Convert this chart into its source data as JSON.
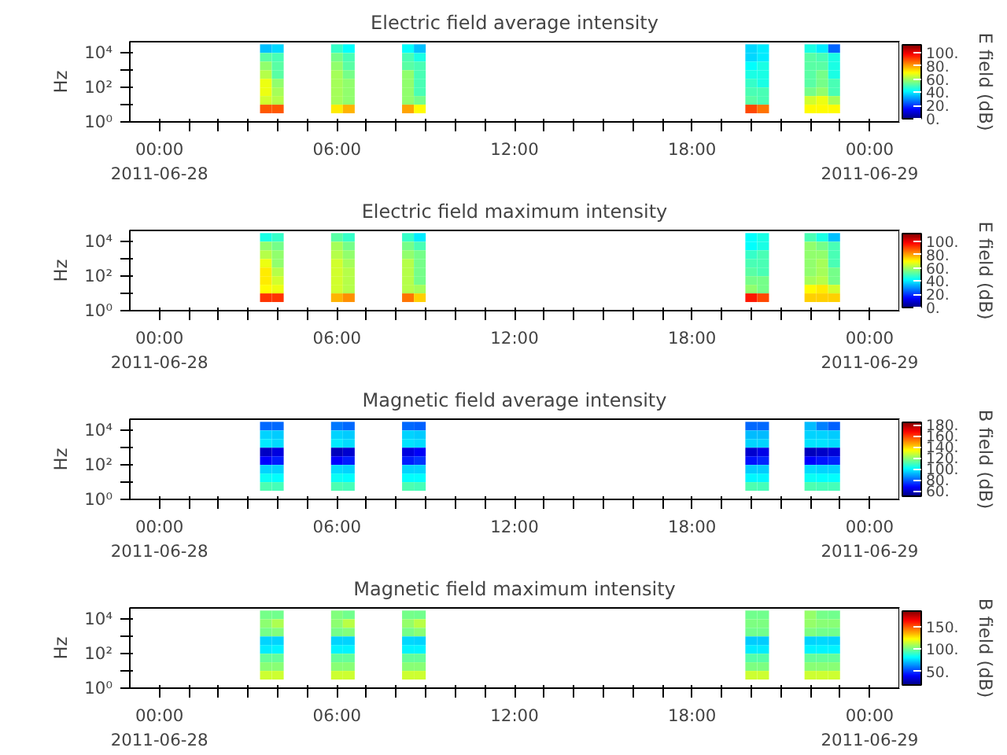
{
  "chart_data": [
    {
      "type": "heatmap",
      "title": "Electric field average intensity",
      "ylabel": "Hz",
      "clabel": "E field (dB)",
      "log": "y",
      "xlim": [
        -1,
        25
      ],
      "ylim": [
        1,
        45000
      ],
      "xticks": [
        {
          "value": 0,
          "label": "00:00\n2011-06-28"
        },
        {
          "value": 1,
          "label": null
        },
        {
          "value": 2,
          "label": null
        },
        {
          "value": 3,
          "label": null
        },
        {
          "value": 4,
          "label": null
        },
        {
          "value": 5,
          "label": null
        },
        {
          "value": 6,
          "label": "06:00"
        },
        {
          "value": 7,
          "label": null
        },
        {
          "value": 8,
          "label": null
        },
        {
          "value": 9,
          "label": null
        },
        {
          "value": 10,
          "label": null
        },
        {
          "value": 11,
          "label": null
        },
        {
          "value": 12,
          "label": "12:00"
        },
        {
          "value": 13,
          "label": null
        },
        {
          "value": 14,
          "label": null
        },
        {
          "value": 15,
          "label": null
        },
        {
          "value": 16,
          "label": null
        },
        {
          "value": 17,
          "label": null
        },
        {
          "value": 18,
          "label": "18:00"
        },
        {
          "value": 19,
          "label": null
        },
        {
          "value": 20,
          "label": null
        },
        {
          "value": 21,
          "label": null
        },
        {
          "value": 22,
          "label": null
        },
        {
          "value": 23,
          "label": null
        },
        {
          "value": 24,
          "label": "00:00\n2011-06-29"
        }
      ],
      "yticks": [
        {
          "value": 1,
          "label": "10⁰"
        },
        {
          "value": 10,
          "label": null
        },
        {
          "value": 100,
          "label": "10²"
        },
        {
          "value": 1000,
          "label": null
        },
        {
          "value": 10000,
          "label": "10⁴"
        }
      ],
      "clim": [
        0,
        112
      ],
      "cticks": [
        {
          "value": 0,
          "label": "0."
        },
        {
          "value": 20,
          "label": "20."
        },
        {
          "value": 40,
          "label": "40."
        },
        {
          "value": 60,
          "label": "60."
        },
        {
          "value": 80,
          "label": "80."
        },
        {
          "value": 100,
          "label": "100."
        }
      ],
      "x": [
        3.6,
        4.0,
        4.4,
        4.8,
        5.2,
        5.6,
        6.0,
        6.4,
        6.8,
        7.2,
        7.6,
        8.0,
        8.4,
        8.8,
        9.2,
        9.6,
        10.0,
        10.4,
        10.8,
        11.2,
        11.6,
        12.0,
        12.4,
        12.8,
        13.2,
        13.6,
        14.0,
        14.4,
        14.8,
        15.2,
        15.6,
        16.0,
        16.4,
        16.8,
        17.2,
        17.6,
        18.0,
        18.4,
        18.8,
        19.2,
        19.6,
        20.0,
        20.4,
        20.8,
        21.2,
        21.6,
        22.0,
        22.4,
        22.8
      ],
      "y": [
        17800,
        5620,
        1780,
        562,
        178,
        56.2,
        17.8,
        5.62
      ],
      "cells": [
        [
          35,
          38,
          null,
          null,
          null,
          null,
          48,
          42,
          null,
          null,
          null,
          null,
          42,
          35,
          null,
          null,
          null,
          null,
          null,
          null,
          null,
          null,
          null,
          null,
          null,
          null,
          null,
          null,
          null,
          null,
          null,
          null,
          null,
          null,
          null,
          null,
          null,
          null,
          null,
          null,
          null,
          38,
          40,
          null,
          null,
          null,
          45,
          40,
          25
        ],
        [
          52,
          50,
          null,
          null,
          null,
          null,
          55,
          50,
          null,
          null,
          null,
          null,
          50,
          45,
          null,
          null,
          null,
          null,
          null,
          null,
          null,
          null,
          null,
          null,
          null,
          null,
          null,
          null,
          null,
          null,
          null,
          null,
          null,
          null,
          null,
          null,
          null,
          null,
          null,
          null,
          null,
          38,
          40,
          null,
          null,
          null,
          52,
          50,
          45
        ],
        [
          58,
          52,
          null,
          null,
          null,
          null,
          58,
          52,
          null,
          null,
          null,
          null,
          52,
          50,
          null,
          null,
          null,
          null,
          null,
          null,
          null,
          null,
          null,
          null,
          null,
          null,
          null,
          null,
          null,
          null,
          null,
          null,
          null,
          null,
          null,
          null,
          null,
          null,
          null,
          null,
          null,
          42,
          45,
          null,
          null,
          null,
          52,
          52,
          45
        ],
        [
          62,
          52,
          null,
          null,
          null,
          null,
          60,
          55,
          null,
          null,
          null,
          null,
          58,
          50,
          null,
          null,
          null,
          null,
          null,
          null,
          null,
          null,
          null,
          null,
          null,
          null,
          null,
          null,
          null,
          null,
          null,
          null,
          null,
          null,
          null,
          null,
          null,
          null,
          null,
          null,
          null,
          45,
          45,
          null,
          null,
          null,
          52,
          55,
          45
        ],
        [
          68,
          58,
          null,
          null,
          null,
          null,
          60,
          58,
          null,
          null,
          null,
          null,
          58,
          50,
          null,
          null,
          null,
          null,
          null,
          null,
          null,
          null,
          null,
          null,
          null,
          null,
          null,
          null,
          null,
          null,
          null,
          null,
          null,
          null,
          null,
          null,
          null,
          null,
          null,
          null,
          null,
          48,
          45,
          null,
          null,
          null,
          52,
          55,
          50
        ],
        [
          68,
          60,
          null,
          null,
          null,
          null,
          60,
          58,
          null,
          null,
          null,
          null,
          58,
          50,
          null,
          null,
          null,
          null,
          null,
          null,
          null,
          null,
          null,
          null,
          null,
          null,
          null,
          null,
          null,
          null,
          null,
          null,
          null,
          null,
          null,
          null,
          null,
          null,
          null,
          null,
          null,
          50,
          50,
          null,
          null,
          null,
          55,
          58,
          50
        ],
        [
          65,
          62,
          null,
          null,
          null,
          null,
          60,
          58,
          null,
          null,
          null,
          null,
          58,
          55,
          null,
          null,
          null,
          null,
          null,
          null,
          null,
          null,
          null,
          null,
          null,
          null,
          null,
          null,
          null,
          null,
          null,
          null,
          null,
          null,
          null,
          null,
          null,
          null,
          null,
          null,
          null,
          52,
          50,
          null,
          null,
          null,
          65,
          68,
          60
        ],
        [
          88,
          88,
          null,
          null,
          null,
          null,
          72,
          78,
          null,
          null,
          null,
          null,
          80,
          70,
          null,
          null,
          null,
          null,
          null,
          null,
          null,
          null,
          null,
          null,
          null,
          null,
          null,
          null,
          null,
          null,
          null,
          null,
          null,
          null,
          null,
          null,
          null,
          null,
          null,
          null,
          null,
          90,
          85,
          null,
          null,
          null,
          70,
          70,
          70
        ]
      ]
    },
    {
      "type": "heatmap",
      "title": "Electric field maximum intensity",
      "ylabel": "Hz",
      "clabel": "E field (dB)",
      "log": "y",
      "xlim": [
        -1,
        25
      ],
      "ylim": [
        1,
        45000
      ],
      "xticks": [
        {
          "value": 0,
          "label": "00:00\n2011-06-28"
        },
        {
          "value": 1,
          "label": null
        },
        {
          "value": 2,
          "label": null
        },
        {
          "value": 3,
          "label": null
        },
        {
          "value": 4,
          "label": null
        },
        {
          "value": 5,
          "label": null
        },
        {
          "value": 6,
          "label": "06:00"
        },
        {
          "value": 7,
          "label": null
        },
        {
          "value": 8,
          "label": null
        },
        {
          "value": 9,
          "label": null
        },
        {
          "value": 10,
          "label": null
        },
        {
          "value": 11,
          "label": null
        },
        {
          "value": 12,
          "label": "12:00"
        },
        {
          "value": 13,
          "label": null
        },
        {
          "value": 14,
          "label": null
        },
        {
          "value": 15,
          "label": null
        },
        {
          "value": 16,
          "label": null
        },
        {
          "value": 17,
          "label": null
        },
        {
          "value": 18,
          "label": "18:00"
        },
        {
          "value": 19,
          "label": null
        },
        {
          "value": 20,
          "label": null
        },
        {
          "value": 21,
          "label": null
        },
        {
          "value": 22,
          "label": null
        },
        {
          "value": 23,
          "label": null
        },
        {
          "value": 24,
          "label": "00:00\n2011-06-29"
        }
      ],
      "yticks": [
        {
          "value": 1,
          "label": "10⁰"
        },
        {
          "value": 10,
          "label": null
        },
        {
          "value": 100,
          "label": "10²"
        },
        {
          "value": 1000,
          "label": null
        },
        {
          "value": 10000,
          "label": "10⁴"
        }
      ],
      "clim": [
        0,
        112
      ],
      "cticks": [
        {
          "value": 0,
          "label": "0."
        },
        {
          "value": 20,
          "label": "20."
        },
        {
          "value": 40,
          "label": "40."
        },
        {
          "value": 60,
          "label": "60."
        },
        {
          "value": 80,
          "label": "80."
        },
        {
          "value": 100,
          "label": "100."
        }
      ],
      "x": [
        3.6,
        4.0,
        4.4,
        4.8,
        5.2,
        5.6,
        6.0,
        6.4,
        6.8,
        7.2,
        7.6,
        8.0,
        8.4,
        8.8,
        9.2,
        9.6,
        10.0,
        10.4,
        10.8,
        11.2,
        11.6,
        12.0,
        12.4,
        12.8,
        13.2,
        13.6,
        14.0,
        14.4,
        14.8,
        15.2,
        15.6,
        16.0,
        16.4,
        16.8,
        17.2,
        17.6,
        18.0,
        18.4,
        18.8,
        19.2,
        19.6,
        20.0,
        20.4,
        20.8,
        21.2,
        21.6,
        22.0,
        22.4,
        22.8
      ],
      "y": [
        17800,
        5620,
        1780,
        562,
        178,
        56.2,
        17.8,
        5.62
      ],
      "cells": [
        [
          45,
          48,
          null,
          null,
          null,
          null,
          52,
          48,
          null,
          null,
          null,
          null,
          48,
          40,
          null,
          null,
          null,
          null,
          null,
          null,
          null,
          null,
          null,
          null,
          null,
          null,
          null,
          null,
          null,
          null,
          null,
          null,
          null,
          null,
          null,
          null,
          null,
          null,
          null,
          null,
          null,
          42,
          45,
          null,
          null,
          null,
          50,
          45,
          35
        ],
        [
          58,
          55,
          null,
          null,
          null,
          null,
          60,
          55,
          null,
          null,
          null,
          null,
          55,
          50,
          null,
          null,
          null,
          null,
          null,
          null,
          null,
          null,
          null,
          null,
          null,
          null,
          null,
          null,
          null,
          null,
          null,
          null,
          null,
          null,
          null,
          null,
          null,
          null,
          null,
          null,
          null,
          42,
          45,
          null,
          null,
          null,
          58,
          55,
          50
        ],
        [
          62,
          58,
          null,
          null,
          null,
          null,
          62,
          58,
          null,
          null,
          null,
          null,
          58,
          55,
          null,
          null,
          null,
          null,
          null,
          null,
          null,
          null,
          null,
          null,
          null,
          null,
          null,
          null,
          null,
          null,
          null,
          null,
          null,
          null,
          null,
          null,
          null,
          null,
          null,
          null,
          null,
          48,
          50,
          null,
          null,
          null,
          58,
          58,
          50
        ],
        [
          68,
          58,
          null,
          null,
          null,
          null,
          65,
          60,
          null,
          null,
          null,
          null,
          62,
          55,
          null,
          null,
          null,
          null,
          null,
          null,
          null,
          null,
          null,
          null,
          null,
          null,
          null,
          null,
          null,
          null,
          null,
          null,
          null,
          null,
          null,
          null,
          null,
          null,
          null,
          null,
          null,
          50,
          50,
          null,
          null,
          null,
          58,
          60,
          50
        ],
        [
          72,
          62,
          null,
          null,
          null,
          null,
          65,
          62,
          null,
          null,
          null,
          null,
          62,
          55,
          null,
          null,
          null,
          null,
          null,
          null,
          null,
          null,
          null,
          null,
          null,
          null,
          null,
          null,
          null,
          null,
          null,
          null,
          null,
          null,
          null,
          null,
          null,
          null,
          null,
          null,
          null,
          52,
          50,
          null,
          null,
          null,
          58,
          60,
          55
        ],
        [
          72,
          65,
          null,
          null,
          null,
          null,
          65,
          62,
          null,
          null,
          null,
          null,
          62,
          55,
          null,
          null,
          null,
          null,
          null,
          null,
          null,
          null,
          null,
          null,
          null,
          null,
          null,
          null,
          null,
          null,
          null,
          null,
          null,
          null,
          null,
          null,
          null,
          null,
          null,
          null,
          null,
          55,
          55,
          null,
          null,
          null,
          60,
          62,
          55
        ],
        [
          70,
          68,
          null,
          null,
          null,
          null,
          65,
          62,
          null,
          null,
          null,
          null,
          62,
          60,
          null,
          null,
          null,
          null,
          null,
          null,
          null,
          null,
          null,
          null,
          null,
          null,
          null,
          null,
          null,
          null,
          null,
          null,
          null,
          null,
          null,
          null,
          null,
          null,
          null,
          null,
          null,
          58,
          55,
          null,
          null,
          null,
          70,
          72,
          65
        ],
        [
          92,
          92,
          null,
          null,
          null,
          null,
          78,
          82,
          null,
          null,
          null,
          null,
          85,
          75,
          null,
          null,
          null,
          null,
          null,
          null,
          null,
          null,
          null,
          null,
          null,
          null,
          null,
          null,
          null,
          null,
          null,
          null,
          null,
          null,
          null,
          null,
          null,
          null,
          null,
          null,
          null,
          95,
          90,
          null,
          null,
          null,
          75,
          75,
          75
        ]
      ]
    },
    {
      "type": "heatmap",
      "title": "Magnetic field average intensity",
      "ylabel": "Hz",
      "clabel": "B field (dB)",
      "log": "y",
      "xlim": [
        -1,
        25
      ],
      "ylim": [
        1,
        45000
      ],
      "xticks": [
        {
          "value": 0,
          "label": "00:00\n2011-06-28"
        },
        {
          "value": 1,
          "label": null
        },
        {
          "value": 2,
          "label": null
        },
        {
          "value": 3,
          "label": null
        },
        {
          "value": 4,
          "label": null
        },
        {
          "value": 5,
          "label": null
        },
        {
          "value": 6,
          "label": "06:00"
        },
        {
          "value": 7,
          "label": null
        },
        {
          "value": 8,
          "label": null
        },
        {
          "value": 9,
          "label": null
        },
        {
          "value": 10,
          "label": null
        },
        {
          "value": 11,
          "label": null
        },
        {
          "value": 12,
          "label": "12:00"
        },
        {
          "value": 13,
          "label": null
        },
        {
          "value": 14,
          "label": null
        },
        {
          "value": 15,
          "label": null
        },
        {
          "value": 16,
          "label": null
        },
        {
          "value": 17,
          "label": null
        },
        {
          "value": 18,
          "label": "18:00"
        },
        {
          "value": 19,
          "label": null
        },
        {
          "value": 20,
          "label": null
        },
        {
          "value": 21,
          "label": null
        },
        {
          "value": 22,
          "label": null
        },
        {
          "value": 23,
          "label": null
        },
        {
          "value": 24,
          "label": "00:00\n2011-06-29"
        }
      ],
      "yticks": [
        {
          "value": 1,
          "label": "10⁰"
        },
        {
          "value": 10,
          "label": null
        },
        {
          "value": 100,
          "label": "10²"
        },
        {
          "value": 1000,
          "label": null
        },
        {
          "value": 10000,
          "label": "10⁴"
        }
      ],
      "clim": [
        50,
        185
      ],
      "cticks": [
        {
          "value": 60,
          "label": "60."
        },
        {
          "value": 80,
          "label": "80."
        },
        {
          "value": 100,
          "label": "100."
        },
        {
          "value": 120,
          "label": "120."
        },
        {
          "value": 140,
          "label": "140."
        },
        {
          "value": 160,
          "label": "160."
        },
        {
          "value": 180,
          "label": "180."
        }
      ],
      "x": [
        3.6,
        4.0,
        4.4,
        4.8,
        5.2,
        5.6,
        6.0,
        6.4,
        6.8,
        7.2,
        7.6,
        8.0,
        8.4,
        8.8,
        9.2,
        9.6,
        10.0,
        10.4,
        10.8,
        11.2,
        11.6,
        12.0,
        12.4,
        12.8,
        13.2,
        13.6,
        14.0,
        14.4,
        14.8,
        15.2,
        15.6,
        16.0,
        16.4,
        16.8,
        17.2,
        17.6,
        18.0,
        18.4,
        18.8,
        19.2,
        19.6,
        20.0,
        20.4,
        20.8,
        21.2,
        21.6,
        22.0,
        22.4,
        22.8
      ],
      "y": [
        17800,
        5620,
        1780,
        562,
        178,
        56.2,
        17.8,
        5.62
      ],
      "cells": [
        [
          81,
          81,
          null,
          null,
          null,
          null,
          83,
          81,
          null,
          null,
          null,
          null,
          81,
          80,
          null,
          null,
          null,
          null,
          null,
          null,
          null,
          null,
          null,
          null,
          null,
          null,
          null,
          null,
          null,
          null,
          null,
          null,
          null,
          null,
          null,
          null,
          null,
          null,
          null,
          null,
          null,
          81,
          81,
          null,
          null,
          null,
          92,
          84,
          80
        ],
        [
          95,
          94,
          null,
          null,
          null,
          null,
          95,
          94,
          null,
          null,
          null,
          null,
          95,
          94,
          null,
          null,
          null,
          null,
          null,
          null,
          null,
          null,
          null,
          null,
          null,
          null,
          null,
          null,
          null,
          null,
          null,
          null,
          null,
          null,
          null,
          null,
          null,
          null,
          null,
          null,
          null,
          92,
          92,
          null,
          null,
          null,
          95,
          95,
          94
        ],
        [
          98,
          96,
          null,
          null,
          null,
          null,
          98,
          96,
          null,
          null,
          null,
          null,
          97,
          96,
          null,
          null,
          null,
          null,
          null,
          null,
          null,
          null,
          null,
          null,
          null,
          null,
          null,
          null,
          null,
          null,
          null,
          null,
          null,
          null,
          null,
          null,
          null,
          null,
          null,
          null,
          null,
          95,
          95,
          null,
          null,
          null,
          97,
          97,
          96
        ],
        [
          59,
          63,
          null,
          null,
          null,
          null,
          58,
          61,
          null,
          null,
          null,
          null,
          63,
          66,
          null,
          null,
          null,
          null,
          null,
          null,
          null,
          null,
          null,
          null,
          null,
          null,
          null,
          null,
          null,
          null,
          null,
          null,
          null,
          null,
          null,
          null,
          null,
          null,
          null,
          null,
          null,
          61,
          64,
          null,
          null,
          null,
          58,
          60,
          62
        ],
        [
          67,
          71,
          null,
          null,
          null,
          null,
          67,
          71,
          null,
          null,
          null,
          null,
          71,
          74,
          null,
          null,
          null,
          null,
          null,
          null,
          null,
          null,
          null,
          null,
          null,
          null,
          null,
          null,
          null,
          null,
          null,
          null,
          null,
          null,
          null,
          null,
          null,
          null,
          null,
          null,
          null,
          69,
          72,
          null,
          null,
          null,
          67,
          70,
          72
        ],
        [
          95,
          95,
          null,
          null,
          null,
          null,
          96,
          95,
          null,
          null,
          null,
          null,
          95,
          95,
          null,
          null,
          null,
          null,
          null,
          null,
          null,
          null,
          null,
          null,
          null,
          null,
          null,
          null,
          null,
          null,
          null,
          null,
          null,
          null,
          null,
          null,
          null,
          null,
          null,
          null,
          null,
          94,
          94,
          null,
          null,
          null,
          96,
          95,
          95
        ],
        [
          102,
          101,
          null,
          null,
          null,
          null,
          102,
          101,
          null,
          null,
          null,
          null,
          101,
          101,
          null,
          null,
          null,
          null,
          null,
          null,
          null,
          null,
          null,
          null,
          null,
          null,
          null,
          null,
          null,
          null,
          null,
          null,
          null,
          null,
          null,
          null,
          null,
          null,
          null,
          null,
          null,
          100,
          100,
          null,
          null,
          null,
          102,
          101,
          101
        ],
        [
          111,
          110,
          null,
          null,
          null,
          null,
          111,
          110,
          null,
          null,
          null,
          null,
          111,
          110,
          null,
          null,
          null,
          null,
          null,
          null,
          null,
          null,
          null,
          null,
          null,
          null,
          null,
          null,
          null,
          null,
          null,
          null,
          null,
          null,
          null,
          null,
          null,
          null,
          null,
          null,
          null,
          111,
          110,
          null,
          null,
          null,
          111,
          110,
          110
        ]
      ]
    },
    {
      "type": "heatmap",
      "title": "Magnetic field maximum intensity",
      "ylabel": "Hz",
      "clabel": "B field (dB)",
      "log": "y",
      "xlim": [
        -1,
        25
      ],
      "ylim": [
        1,
        45000
      ],
      "xticks": [
        {
          "value": 0,
          "label": "00:00\n2011-06-28"
        },
        {
          "value": 1,
          "label": null
        },
        {
          "value": 2,
          "label": null
        },
        {
          "value": 3,
          "label": null
        },
        {
          "value": 4,
          "label": null
        },
        {
          "value": 5,
          "label": null
        },
        {
          "value": 6,
          "label": "06:00"
        },
        {
          "value": 7,
          "label": null
        },
        {
          "value": 8,
          "label": null
        },
        {
          "value": 9,
          "label": null
        },
        {
          "value": 10,
          "label": null
        },
        {
          "value": 11,
          "label": null
        },
        {
          "value": 12,
          "label": "12:00"
        },
        {
          "value": 13,
          "label": null
        },
        {
          "value": 14,
          "label": null
        },
        {
          "value": 15,
          "label": null
        },
        {
          "value": 16,
          "label": null
        },
        {
          "value": 17,
          "label": null
        },
        {
          "value": 18,
          "label": "18:00"
        },
        {
          "value": 19,
          "label": null
        },
        {
          "value": 20,
          "label": null
        },
        {
          "value": 21,
          "label": null
        },
        {
          "value": 22,
          "label": null
        },
        {
          "value": 23,
          "label": null
        },
        {
          "value": 24,
          "label": "00:00\n2011-06-29"
        }
      ],
      "yticks": [
        {
          "value": 1,
          "label": "10⁰"
        },
        {
          "value": 10,
          "label": null
        },
        {
          "value": 100,
          "label": "10²"
        },
        {
          "value": 1000,
          "label": null
        },
        {
          "value": 10000,
          "label": "10⁴"
        }
      ],
      "clim": [
        20,
        185
      ],
      "cticks": [
        {
          "value": 50,
          "label": "50."
        },
        {
          "value": 100,
          "label": "100."
        },
        {
          "value": 150,
          "label": "150."
        }
      ],
      "x": [
        3.6,
        4.0,
        4.4,
        4.8,
        5.2,
        5.6,
        6.0,
        6.4,
        6.8,
        7.2,
        7.6,
        8.0,
        8.4,
        8.8,
        9.2,
        9.6,
        10.0,
        10.4,
        10.8,
        11.2,
        11.6,
        12.0,
        12.4,
        12.8,
        13.2,
        13.6,
        14.0,
        14.4,
        14.8,
        15.2,
        15.6,
        16.0,
        16.4,
        16.8,
        17.2,
        17.6,
        18.0,
        18.4,
        18.8,
        19.2,
        19.6,
        20.0,
        20.4,
        20.8,
        21.2,
        21.6,
        22.0,
        22.4,
        22.8
      ],
      "y": [
        17800,
        5620,
        1780,
        562,
        178,
        56.2,
        17.8,
        5.62
      ],
      "cells": [
        [
          101,
          100,
          null,
          null,
          null,
          null,
          103,
          100,
          null,
          null,
          null,
          null,
          101,
          100,
          null,
          null,
          null,
          null,
          null,
          null,
          null,
          null,
          null,
          null,
          null,
          null,
          null,
          null,
          null,
          null,
          null,
          null,
          null,
          null,
          null,
          null,
          null,
          null,
          null,
          null,
          null,
          100,
          100,
          null,
          null,
          null,
          106,
          101,
          100
        ],
        [
          105,
          110,
          null,
          null,
          null,
          null,
          105,
          112,
          null,
          null,
          null,
          null,
          106,
          112,
          null,
          null,
          null,
          null,
          null,
          null,
          null,
          null,
          null,
          null,
          null,
          null,
          null,
          null,
          null,
          null,
          null,
          null,
          null,
          null,
          null,
          null,
          null,
          null,
          null,
          null,
          null,
          102,
          102,
          null,
          null,
          null,
          106,
          104,
          104
        ],
        [
          101,
          103,
          null,
          null,
          null,
          null,
          101,
          103,
          null,
          null,
          null,
          null,
          101,
          104,
          null,
          null,
          null,
          null,
          null,
          null,
          null,
          null,
          null,
          null,
          null,
          null,
          null,
          null,
          null,
          null,
          null,
          null,
          null,
          null,
          null,
          null,
          null,
          null,
          null,
          null,
          null,
          100,
          100,
          null,
          null,
          null,
          102,
          100,
          100
        ],
        [
          75,
          75,
          null,
          null,
          null,
          null,
          75,
          75,
          null,
          null,
          null,
          null,
          76,
          75,
          null,
          null,
          null,
          null,
          null,
          null,
          null,
          null,
          null,
          null,
          null,
          null,
          null,
          null,
          null,
          null,
          null,
          null,
          null,
          null,
          null,
          null,
          null,
          null,
          null,
          null,
          null,
          74,
          74,
          null,
          null,
          null,
          75,
          76,
          75
        ],
        [
          79,
          80,
          null,
          null,
          null,
          null,
          80,
          80,
          null,
          null,
          null,
          null,
          80,
          80,
          null,
          null,
          null,
          null,
          null,
          null,
          null,
          null,
          null,
          null,
          null,
          null,
          null,
          null,
          null,
          null,
          null,
          null,
          null,
          null,
          null,
          null,
          null,
          null,
          null,
          null,
          null,
          79,
          79,
          null,
          null,
          null,
          80,
          80,
          80
        ],
        [
          98,
          98,
          null,
          null,
          null,
          null,
          98,
          98,
          null,
          null,
          null,
          null,
          98,
          98,
          null,
          null,
          null,
          null,
          null,
          null,
          null,
          null,
          null,
          null,
          null,
          null,
          null,
          null,
          null,
          null,
          null,
          null,
          null,
          null,
          null,
          null,
          null,
          null,
          null,
          null,
          null,
          96,
          96,
          null,
          null,
          null,
          98,
          98,
          98
        ],
        [
          104,
          104,
          null,
          null,
          null,
          null,
          104,
          104,
          null,
          null,
          null,
          null,
          104,
          104,
          null,
          null,
          null,
          null,
          null,
          null,
          null,
          null,
          null,
          null,
          null,
          null,
          null,
          null,
          null,
          null,
          null,
          null,
          null,
          null,
          null,
          null,
          null,
          null,
          null,
          null,
          null,
          102,
          102,
          null,
          null,
          null,
          104,
          104,
          104
        ],
        [
          115,
          115,
          null,
          null,
          null,
          null,
          115,
          115,
          null,
          null,
          null,
          null,
          115,
          115,
          null,
          null,
          null,
          null,
          null,
          null,
          null,
          null,
          null,
          null,
          null,
          null,
          null,
          null,
          null,
          null,
          null,
          null,
          null,
          null,
          null,
          null,
          null,
          null,
          null,
          null,
          null,
          115,
          115,
          null,
          null,
          null,
          115,
          115,
          115
        ]
      ]
    }
  ]
}
